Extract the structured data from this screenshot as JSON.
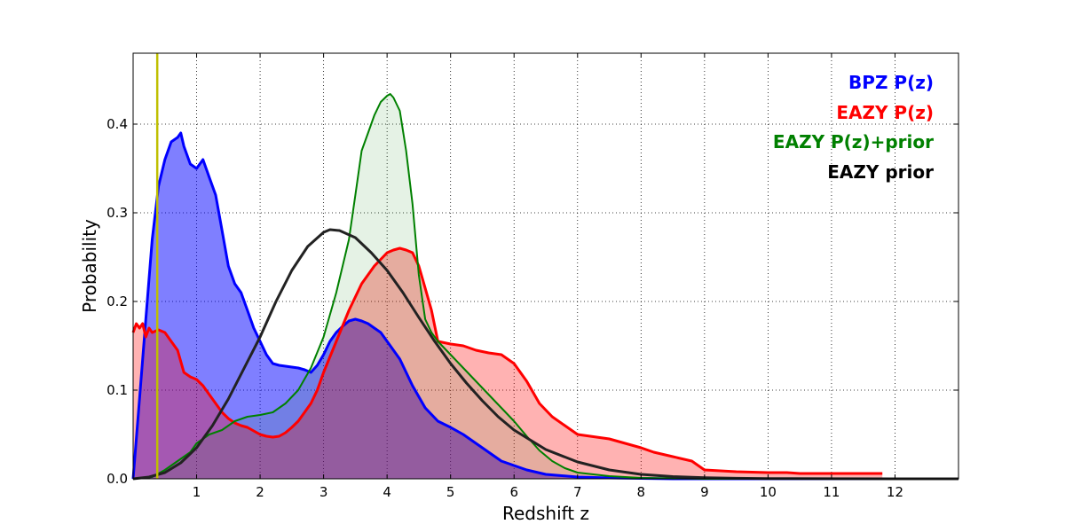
{
  "chart_data": {
    "type": "area",
    "xlabel": "Redshift z",
    "ylabel": "Probability",
    "xlim": [
      0,
      13
    ],
    "ylim": [
      0,
      0.48
    ],
    "xticks": [
      1,
      2,
      3,
      4,
      5,
      6,
      7,
      8,
      9,
      10,
      11,
      12
    ],
    "yticks": [
      0.0,
      0.1,
      0.2,
      0.3,
      0.4
    ],
    "grid": true,
    "legend_position": "top-right",
    "vertical_line": {
      "x": 0.38,
      "color": "#bfbf00"
    },
    "series": [
      {
        "name": "BPZ P(z)",
        "color": "#0000ff",
        "fill": true,
        "fill_color": "#0000ff",
        "fill_opacity": 0.5,
        "x": [
          0,
          0.1,
          0.2,
          0.3,
          0.4,
          0.5,
          0.6,
          0.7,
          0.75,
          0.8,
          0.9,
          1.0,
          1.1,
          1.2,
          1.3,
          1.4,
          1.5,
          1.6,
          1.7,
          1.8,
          1.9,
          2.0,
          2.1,
          2.2,
          2.3,
          2.4,
          2.5,
          2.6,
          2.7,
          2.8,
          2.9,
          3.0,
          3.1,
          3.2,
          3.3,
          3.4,
          3.5,
          3.6,
          3.7,
          3.8,
          3.9,
          4.0,
          4.2,
          4.4,
          4.6,
          4.8,
          5.0,
          5.2,
          5.4,
          5.6,
          5.8,
          6.0,
          6.2,
          6.5,
          7.0,
          7.5,
          8.0,
          8.5,
          9.0,
          10,
          11,
          12,
          13
        ],
        "y": [
          0.0,
          0.09,
          0.18,
          0.27,
          0.33,
          0.36,
          0.38,
          0.385,
          0.39,
          0.375,
          0.355,
          0.35,
          0.36,
          0.34,
          0.32,
          0.28,
          0.24,
          0.22,
          0.21,
          0.19,
          0.17,
          0.155,
          0.14,
          0.13,
          0.128,
          0.127,
          0.126,
          0.125,
          0.123,
          0.12,
          0.128,
          0.14,
          0.155,
          0.165,
          0.172,
          0.178,
          0.18,
          0.178,
          0.175,
          0.17,
          0.165,
          0.155,
          0.135,
          0.105,
          0.08,
          0.065,
          0.058,
          0.05,
          0.04,
          0.03,
          0.02,
          0.015,
          0.01,
          0.005,
          0.002,
          0.001,
          0.0005,
          0.0,
          0.0,
          0.0,
          0.0,
          0.0,
          0.0
        ]
      },
      {
        "name": "EAZY P(z)",
        "color": "#ff0000",
        "fill": true,
        "fill_color": "#ff0000",
        "fill_opacity": 0.3,
        "x": [
          0,
          0.05,
          0.1,
          0.15,
          0.2,
          0.25,
          0.3,
          0.4,
          0.5,
          0.6,
          0.7,
          0.8,
          0.9,
          1.0,
          1.1,
          1.2,
          1.3,
          1.4,
          1.5,
          1.6,
          1.7,
          1.8,
          1.9,
          2.0,
          2.1,
          2.2,
          2.3,
          2.4,
          2.5,
          2.6,
          2.7,
          2.8,
          2.9,
          3.0,
          3.2,
          3.4,
          3.6,
          3.8,
          4.0,
          4.1,
          4.2,
          4.3,
          4.4,
          4.5,
          4.6,
          4.7,
          4.8,
          5.0,
          5.2,
          5.4,
          5.6,
          5.8,
          6.0,
          6.2,
          6.4,
          6.6,
          6.8,
          7.0,
          7.5,
          8.0,
          8.2,
          8.5,
          8.8,
          9.0,
          9.5,
          10.0,
          10.3,
          10.5,
          10.8,
          11.0,
          11.5,
          11.8
        ],
        "y": [
          0.165,
          0.175,
          0.17,
          0.175,
          0.16,
          0.17,
          0.165,
          0.168,
          0.165,
          0.155,
          0.145,
          0.12,
          0.115,
          0.112,
          0.105,
          0.095,
          0.085,
          0.075,
          0.068,
          0.063,
          0.06,
          0.058,
          0.054,
          0.05,
          0.048,
          0.047,
          0.048,
          0.052,
          0.058,
          0.065,
          0.075,
          0.085,
          0.1,
          0.12,
          0.155,
          0.19,
          0.22,
          0.24,
          0.255,
          0.258,
          0.26,
          0.258,
          0.255,
          0.24,
          0.215,
          0.19,
          0.155,
          0.152,
          0.15,
          0.145,
          0.142,
          0.14,
          0.13,
          0.11,
          0.085,
          0.07,
          0.06,
          0.05,
          0.045,
          0.035,
          0.03,
          0.025,
          0.02,
          0.01,
          0.008,
          0.007,
          0.007,
          0.006,
          0.006,
          0.006,
          0.006,
          0.006
        ]
      },
      {
        "name": "EAZY P(z)+prior",
        "color": "#008000",
        "fill": true,
        "fill_color": "#008000",
        "fill_opacity": 0.1,
        "x": [
          0,
          0.3,
          0.5,
          0.7,
          0.9,
          1.0,
          1.2,
          1.4,
          1.6,
          1.8,
          2.0,
          2.2,
          2.4,
          2.6,
          2.8,
          3.0,
          3.2,
          3.4,
          3.5,
          3.6,
          3.7,
          3.8,
          3.9,
          4.0,
          4.05,
          4.1,
          4.2,
          4.3,
          4.4,
          4.5,
          4.6,
          4.7,
          4.8,
          5.0,
          5.2,
          5.4,
          5.6,
          5.8,
          6.0,
          6.2,
          6.4,
          6.6,
          6.8,
          7.0,
          7.5,
          8.0,
          9.0,
          10,
          11,
          12,
          13
        ],
        "y": [
          0.0,
          0.002,
          0.01,
          0.02,
          0.03,
          0.04,
          0.05,
          0.055,
          0.065,
          0.07,
          0.072,
          0.075,
          0.085,
          0.1,
          0.125,
          0.16,
          0.21,
          0.27,
          0.32,
          0.37,
          0.39,
          0.41,
          0.425,
          0.432,
          0.434,
          0.43,
          0.415,
          0.37,
          0.31,
          0.23,
          0.18,
          0.165,
          0.155,
          0.14,
          0.125,
          0.11,
          0.095,
          0.08,
          0.065,
          0.048,
          0.032,
          0.02,
          0.012,
          0.007,
          0.003,
          0.001,
          0.0,
          0.0,
          0.0,
          0.0,
          0.0
        ]
      },
      {
        "name": "EAZY prior",
        "color": "#222222",
        "fill": false,
        "x": [
          0,
          0.25,
          0.5,
          0.75,
          1.0,
          1.25,
          1.5,
          1.75,
          2.0,
          2.25,
          2.5,
          2.75,
          3.0,
          3.1,
          3.25,
          3.5,
          3.75,
          4.0,
          4.25,
          4.5,
          4.75,
          5.0,
          5.25,
          5.5,
          5.75,
          6.0,
          6.5,
          7.0,
          7.5,
          8.0,
          8.5,
          9.0,
          9.5,
          10.0,
          11.0,
          12.0,
          13.0
        ],
        "y": [
          0.0,
          0.002,
          0.007,
          0.018,
          0.035,
          0.06,
          0.09,
          0.125,
          0.16,
          0.2,
          0.235,
          0.262,
          0.278,
          0.281,
          0.28,
          0.272,
          0.255,
          0.235,
          0.21,
          0.182,
          0.155,
          0.13,
          0.108,
          0.088,
          0.07,
          0.055,
          0.033,
          0.019,
          0.01,
          0.005,
          0.0025,
          0.0012,
          0.0006,
          0.0003,
          0.0001,
          0.0,
          0.0
        ]
      }
    ]
  }
}
